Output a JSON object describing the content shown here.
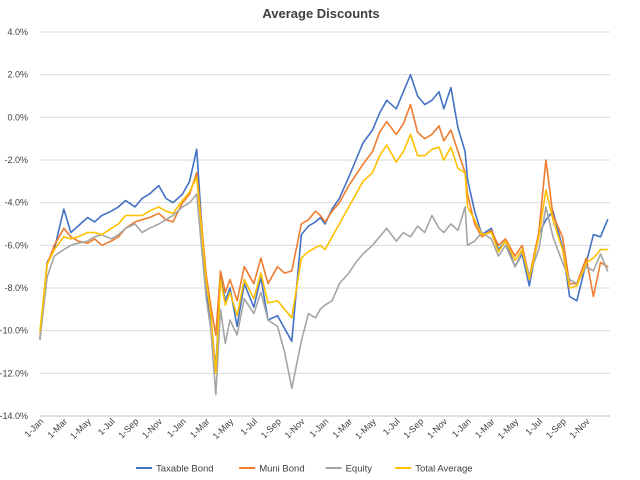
{
  "chart_data": {
    "type": "line",
    "title": "Average Discounts",
    "xlabel": "",
    "ylabel": "",
    "ylim": [
      -14,
      4
    ],
    "y_ticks": [
      4,
      2,
      0,
      -2,
      -4,
      -6,
      -8,
      -10,
      -12,
      -14
    ],
    "y_tick_labels": [
      "4.0%",
      "2.0%",
      "0.0%",
      "-2.0%",
      "-4.0%",
      "-6.0%",
      "-8.0%",
      "-10.0%",
      "-12.0%",
      "-14.0%"
    ],
    "x_tick_labels": [
      "1-Jan",
      "1-Mar",
      "1-May",
      "1-Jul",
      "1-Sep",
      "1-Nov",
      "1-Jan",
      "1-Mar",
      "1-May",
      "1-Jul",
      "1-Sep",
      "1-Nov",
      "1-Jan",
      "1-Mar",
      "1-May",
      "1-Jul",
      "1-Sep",
      "1-Nov",
      "1-Jan",
      "1-Mar",
      "1-May",
      "1-Jul",
      "1-Sep",
      "1-Nov"
    ],
    "x_range": [
      0,
      24
    ],
    "grid": true,
    "legend": "bottom",
    "series": [
      {
        "name": "Taxable Bond",
        "color": "#4472C4",
        "x": [
          0,
          0.3,
          0.6,
          1.0,
          1.3,
          1.6,
          2.0,
          2.3,
          2.6,
          3.0,
          3.3,
          3.6,
          4.0,
          4.3,
          4.6,
          5.0,
          5.3,
          5.6,
          6.0,
          6.3,
          6.6,
          7.0,
          7.2,
          7.4,
          7.6,
          7.8,
          8.0,
          8.3,
          8.6,
          9.0,
          9.3,
          9.6,
          10.0,
          10.3,
          10.6,
          11.0,
          11.3,
          11.6,
          11.8,
          12.0,
          12.3,
          12.6,
          13.0,
          13.3,
          13.6,
          14.0,
          14.3,
          14.6,
          15.0,
          15.3,
          15.6,
          15.9,
          16.2,
          16.5,
          16.8,
          17.0,
          17.3,
          17.6,
          17.9,
          18.0,
          18.3,
          18.6,
          19.0,
          19.3,
          19.6,
          20.0,
          20.3,
          20.6,
          21.0,
          21.3,
          21.6,
          22.0,
          22.3,
          22.6,
          23.0,
          23.3,
          23.6,
          23.9
        ],
        "values": [
          -10.4,
          -6.8,
          -6.2,
          -4.3,
          -5.4,
          -5.1,
          -4.7,
          -4.9,
          -4.6,
          -4.4,
          -4.2,
          -3.9,
          -4.2,
          -3.8,
          -3.6,
          -3.2,
          -3.8,
          -4.0,
          -3.6,
          -3.0,
          -1.5,
          -8.3,
          -9.5,
          -11.8,
          -7.5,
          -8.6,
          -8.0,
          -9.8,
          -7.8,
          -8.9,
          -7.5,
          -9.5,
          -9.3,
          -9.9,
          -10.5,
          -5.5,
          -5.1,
          -4.9,
          -4.7,
          -5.0,
          -4.3,
          -3.8,
          -2.8,
          -2.0,
          -1.2,
          -0.6,
          0.2,
          0.8,
          0.4,
          1.2,
          2.0,
          1.0,
          0.6,
          0.8,
          1.2,
          0.4,
          1.4,
          -0.5,
          -1.6,
          -2.9,
          -4.4,
          -5.5,
          -5.2,
          -6.2,
          -5.8,
          -7.0,
          -6.4,
          -7.9,
          -5.5,
          -4.8,
          -4.4,
          -6.1,
          -8.4,
          -8.6,
          -6.8,
          -5.5,
          -5.6,
          -4.8
        ]
      },
      {
        "name": "Muni Bond",
        "color": "#ED7D31",
        "x": [
          0,
          0.3,
          0.6,
          1.0,
          1.3,
          1.6,
          2.0,
          2.3,
          2.6,
          3.0,
          3.3,
          3.6,
          4.0,
          4.3,
          4.6,
          5.0,
          5.3,
          5.6,
          6.0,
          6.3,
          6.6,
          7.0,
          7.2,
          7.4,
          7.6,
          7.8,
          8.0,
          8.3,
          8.6,
          9.0,
          9.3,
          9.6,
          10.0,
          10.3,
          10.6,
          11.0,
          11.3,
          11.6,
          11.8,
          12.0,
          12.3,
          12.6,
          13.0,
          13.3,
          13.6,
          14.0,
          14.3,
          14.6,
          15.0,
          15.3,
          15.6,
          15.9,
          16.2,
          16.5,
          16.8,
          17.0,
          17.3,
          17.6,
          17.9,
          18.0,
          18.3,
          18.6,
          19.0,
          19.3,
          19.6,
          20.0,
          20.3,
          20.6,
          21.0,
          21.3,
          21.6,
          22.0,
          22.3,
          22.6,
          23.0,
          23.3,
          23.6,
          23.9
        ],
        "values": [
          -10.3,
          -6.9,
          -6.0,
          -5.2,
          -5.6,
          -5.8,
          -5.9,
          -5.7,
          -6.0,
          -5.8,
          -5.6,
          -5.2,
          -4.9,
          -4.8,
          -4.7,
          -4.5,
          -4.8,
          -4.9,
          -4.0,
          -3.6,
          -2.6,
          -7.4,
          -8.9,
          -10.2,
          -7.2,
          -8.2,
          -7.6,
          -8.6,
          -7.0,
          -7.8,
          -6.6,
          -7.8,
          -7.0,
          -7.3,
          -7.2,
          -5.0,
          -4.8,
          -4.4,
          -4.6,
          -4.9,
          -4.4,
          -4.0,
          -3.2,
          -2.7,
          -2.2,
          -1.6,
          -0.7,
          -0.2,
          -0.8,
          -0.3,
          0.6,
          -0.7,
          -1.0,
          -0.8,
          -0.4,
          -1.1,
          -0.6,
          -1.6,
          -2.6,
          -3.6,
          -5.0,
          -5.6,
          -5.3,
          -6.0,
          -5.7,
          -6.5,
          -6.0,
          -7.5,
          -5.4,
          -2.0,
          -4.6,
          -5.6,
          -7.8,
          -7.8,
          -6.6,
          -8.4,
          -6.8,
          -7.0
        ]
      },
      {
        "name": "Equity",
        "color": "#A5A5A5",
        "x": [
          0,
          0.3,
          0.6,
          1.0,
          1.3,
          1.6,
          2.0,
          2.3,
          2.6,
          3.0,
          3.3,
          3.6,
          4.0,
          4.3,
          4.6,
          5.0,
          5.3,
          5.6,
          6.0,
          6.3,
          6.6,
          7.0,
          7.2,
          7.4,
          7.6,
          7.8,
          8.0,
          8.3,
          8.6,
          9.0,
          9.3,
          9.6,
          10.0,
          10.3,
          10.6,
          11.0,
          11.3,
          11.6,
          11.8,
          12.0,
          12.3,
          12.6,
          13.0,
          13.3,
          13.6,
          14.0,
          14.3,
          14.6,
          15.0,
          15.3,
          15.6,
          15.9,
          16.2,
          16.5,
          16.8,
          17.0,
          17.3,
          17.6,
          17.9,
          18.0,
          18.3,
          18.6,
          19.0,
          19.3,
          19.6,
          20.0,
          20.3,
          20.6,
          21.0,
          21.3,
          21.6,
          22.0,
          22.3,
          22.6,
          23.0,
          23.3,
          23.6,
          23.9
        ],
        "values": [
          -10.4,
          -7.5,
          -6.5,
          -6.2,
          -6.0,
          -5.9,
          -5.8,
          -5.6,
          -5.5,
          -5.7,
          -5.5,
          -5.2,
          -5.0,
          -5.4,
          -5.2,
          -5.0,
          -4.8,
          -4.6,
          -4.2,
          -4.0,
          -3.6,
          -8.5,
          -10.0,
          -13.0,
          -9.0,
          -10.6,
          -9.5,
          -10.2,
          -8.5,
          -9.2,
          -8.2,
          -9.5,
          -9.8,
          -11.0,
          -12.7,
          -10.5,
          -9.2,
          -9.4,
          -9.0,
          -8.8,
          -8.6,
          -7.8,
          -7.3,
          -6.8,
          -6.4,
          -6.0,
          -5.6,
          -5.2,
          -5.8,
          -5.4,
          -5.6,
          -5.1,
          -5.4,
          -4.6,
          -5.2,
          -5.4,
          -5.0,
          -5.3,
          -4.2,
          -6.0,
          -5.8,
          -5.4,
          -5.7,
          -6.5,
          -6.0,
          -7.0,
          -6.3,
          -7.4,
          -6.2,
          -4.2,
          -5.6,
          -6.8,
          -7.6,
          -7.8,
          -7.0,
          -7.2,
          -6.4,
          -7.2
        ]
      },
      {
        "name": "Total Average",
        "color": "#FFC000",
        "x": [
          0,
          0.3,
          0.6,
          1.0,
          1.3,
          1.6,
          2.0,
          2.3,
          2.6,
          3.0,
          3.3,
          3.6,
          4.0,
          4.3,
          4.6,
          5.0,
          5.3,
          5.6,
          6.0,
          6.3,
          6.6,
          7.0,
          7.2,
          7.4,
          7.6,
          7.8,
          8.0,
          8.3,
          8.6,
          9.0,
          9.3,
          9.6,
          10.0,
          10.3,
          10.6,
          11.0,
          11.3,
          11.6,
          11.8,
          12.0,
          12.3,
          12.6,
          13.0,
          13.3,
          13.6,
          14.0,
          14.3,
          14.6,
          15.0,
          15.3,
          15.6,
          15.9,
          16.2,
          16.5,
          16.8,
          17.0,
          17.3,
          17.6,
          17.9,
          18.0,
          18.3,
          18.6,
          19.0,
          19.3,
          19.6,
          20.0,
          20.3,
          20.6,
          21.0,
          21.3,
          21.6,
          22.0,
          22.3,
          22.6,
          23.0,
          23.3,
          23.6,
          23.9
        ],
        "values": [
          -10.0,
          -6.9,
          -6.2,
          -5.6,
          -5.7,
          -5.6,
          -5.4,
          -5.4,
          -5.5,
          -5.2,
          -5.0,
          -4.6,
          -4.6,
          -4.6,
          -4.4,
          -4.2,
          -4.4,
          -4.5,
          -3.9,
          -3.5,
          -2.8,
          -7.7,
          -9.3,
          -12.0,
          -7.6,
          -8.8,
          -8.2,
          -9.3,
          -7.6,
          -8.5,
          -7.3,
          -8.7,
          -8.6,
          -9.0,
          -9.4,
          -6.6,
          -6.3,
          -6.1,
          -6.0,
          -6.2,
          -5.6,
          -5.0,
          -4.2,
          -3.6,
          -3.0,
          -2.6,
          -1.8,
          -1.3,
          -2.1,
          -1.6,
          -0.8,
          -1.8,
          -1.8,
          -1.5,
          -1.4,
          -2.0,
          -1.4,
          -2.4,
          -2.6,
          -4.2,
          -4.8,
          -5.5,
          -5.4,
          -6.3,
          -5.8,
          -6.7,
          -6.2,
          -7.6,
          -5.6,
          -3.4,
          -4.8,
          -6.2,
          -8.0,
          -7.9,
          -6.8,
          -6.6,
          -6.2,
          -6.2
        ]
      }
    ]
  }
}
